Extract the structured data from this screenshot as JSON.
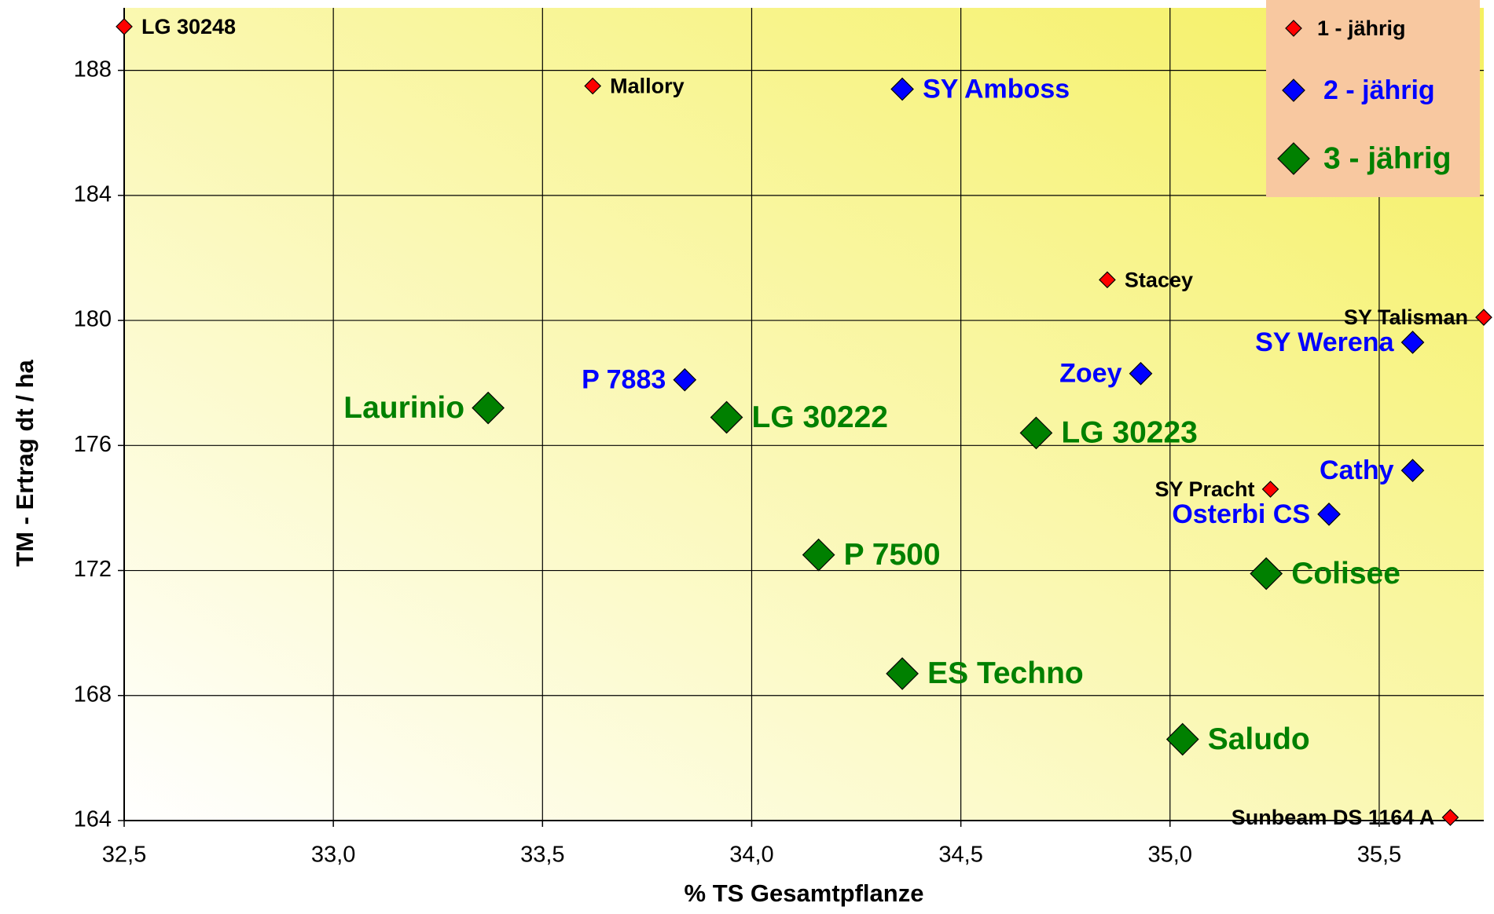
{
  "chart_data": {
    "type": "scatter",
    "x_label": "% TS Gesamtpflanze",
    "y_label": "TM - Ertrag  dt / ha",
    "xlim": [
      32.5,
      35.75
    ],
    "ylim": [
      164,
      190
    ],
    "xticks": [
      {
        "value": 32.5,
        "label": "32,5"
      },
      {
        "value": 33.0,
        "label": "33,0"
      },
      {
        "value": 33.5,
        "label": "33,5"
      },
      {
        "value": 34.0,
        "label": "34,0"
      },
      {
        "value": 34.5,
        "label": "34,5"
      },
      {
        "value": 35.0,
        "label": "35,0"
      },
      {
        "value": 35.5,
        "label": "35,5"
      }
    ],
    "yticks": [
      164,
      168,
      172,
      176,
      180,
      184,
      188
    ],
    "grid": true,
    "legend": "upper right",
    "series": [
      {
        "name": "1 - jährig",
        "color": "#ff0000",
        "label_color": "#000000",
        "labels": [
          "LG 30248",
          "Mallory",
          "Stacey",
          "SY Talisman",
          "SY Pracht",
          "Sunbeam DS 1164 A"
        ],
        "x": [
          32.5,
          33.62,
          34.85,
          35.75,
          35.24,
          35.67
        ],
        "values": [
          189.4,
          187.5,
          181.3,
          180.1,
          174.6,
          164.1
        ]
      },
      {
        "name": "2 - jährig",
        "color": "#0000ff",
        "label_color": "#0000ff",
        "labels": [
          "SY Amboss",
          "P 7883",
          "Zoey",
          "SY Werena",
          "Cathy",
          "Osterbi CS"
        ],
        "x": [
          34.36,
          33.84,
          34.93,
          35.58,
          35.58,
          35.38
        ],
        "values": [
          187.4,
          178.1,
          178.3,
          179.3,
          175.2,
          173.8
        ]
      },
      {
        "name": "3 - jährig",
        "color": "#008000",
        "label_color": "#008000",
        "labels": [
          "Laurinio",
          "LG 30222",
          "LG 30223",
          "P 7500",
          "Colisee",
          "ES Techno",
          "Saludo"
        ],
        "x": [
          33.37,
          33.94,
          34.68,
          34.16,
          35.23,
          34.36,
          35.03
        ],
        "values": [
          177.2,
          176.9,
          176.4,
          172.5,
          171.9,
          168.7,
          166.6
        ]
      }
    ]
  }
}
